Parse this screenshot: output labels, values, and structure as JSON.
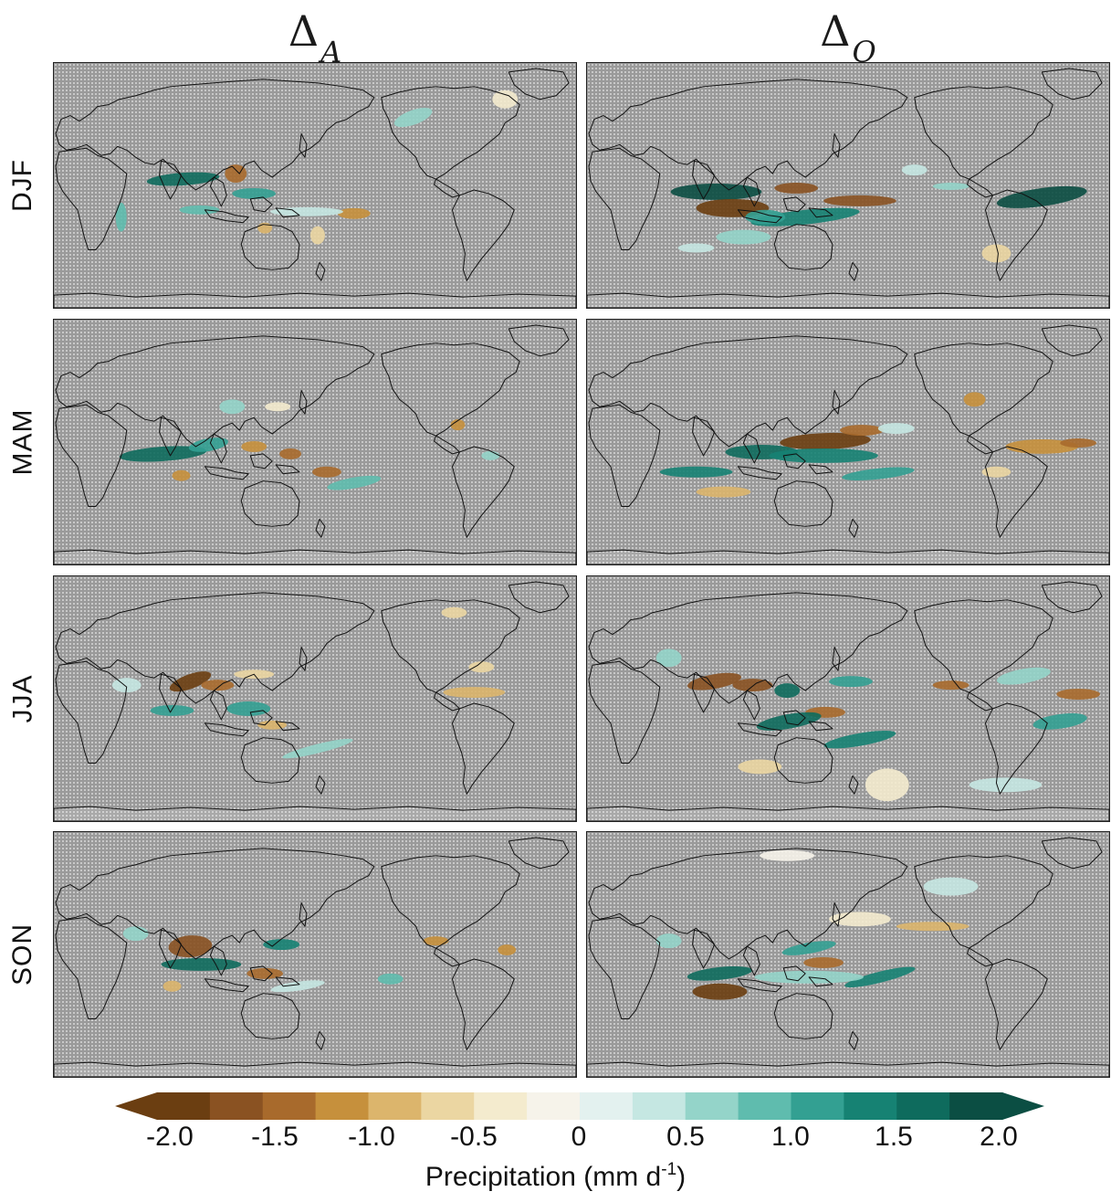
{
  "columns": [
    {
      "symbol": "Δ",
      "subscript": "A"
    },
    {
      "symbol": "Δ",
      "subscript": "O"
    }
  ],
  "rows": [
    "DJF",
    "MAM",
    "JJA",
    "SON"
  ],
  "colorbar": {
    "ticks": [
      "-2.0",
      "-1.5",
      "-1.0",
      "-0.5",
      "0",
      "0.5",
      "1.0",
      "1.5",
      "2.0"
    ],
    "label_main": "Precipitation (mm d",
    "label_sup": "-1",
    "label_close": ")",
    "min": -2.0,
    "max": 2.0,
    "extend": "both",
    "colors": [
      "#6b3e11",
      "#8a5222",
      "#a86a2c",
      "#c6903c",
      "#dcb56c",
      "#ebd6a2",
      "#f4ebce",
      "#f6f3ea",
      "#e3f1ef",
      "#c5e7e2",
      "#94d4c9",
      "#5fbcae",
      "#33a092",
      "#168273",
      "#0e6b5d",
      "#0b4e43"
    ]
  },
  "map_style": {
    "background": "#9a9a9a",
    "stipple": "#cfcfcf",
    "coastline": "#111111"
  }
}
